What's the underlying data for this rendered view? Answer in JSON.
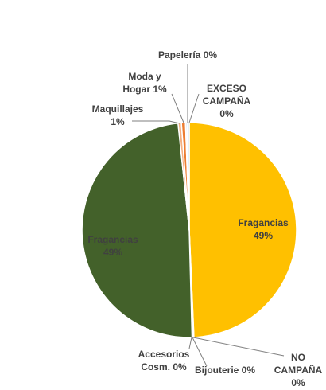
{
  "chart_data": {
    "type": "pie",
    "title": "",
    "legend": "none",
    "slices": [
      {
        "name": "Fragancias",
        "label": "Fragancias",
        "value": 49,
        "display": "49%",
        "color": "#FFC000"
      },
      {
        "name": "NO CAMPAÑA",
        "label": "NO CAMPAÑA",
        "value": 0,
        "display": "0%",
        "color": "#C9C9C9"
      },
      {
        "name": "Bijouterie",
        "label": "Bijouterie",
        "value": 0,
        "display": "0%",
        "color": "#A5A5A5"
      },
      {
        "name": "Accesorios Cosm.",
        "label": "Accesorios Cosm.",
        "value": 0,
        "display": "0%",
        "color": "#7F7F7F"
      },
      {
        "name": "Fragancias",
        "label": "Fragancias",
        "value": 49,
        "display": "49%",
        "color": "#43612A"
      },
      {
        "name": "Maquillajes",
        "label": "Maquillajes",
        "value": 1,
        "display": "1%",
        "color": "#F4B183"
      },
      {
        "name": "Moda y Hogar",
        "label": "Moda y Hogar",
        "value": 1,
        "display": "1%",
        "color": "#ED7D31"
      },
      {
        "name": "Papelería",
        "label": "Papelería",
        "value": 0,
        "display": "0%",
        "color": "#BDD7EE"
      },
      {
        "name": "EXCESO CAMPAÑA",
        "label": "EXCESO CAMPAÑA",
        "value": 0,
        "display": "0%",
        "color": "#9DC3E6"
      }
    ]
  }
}
